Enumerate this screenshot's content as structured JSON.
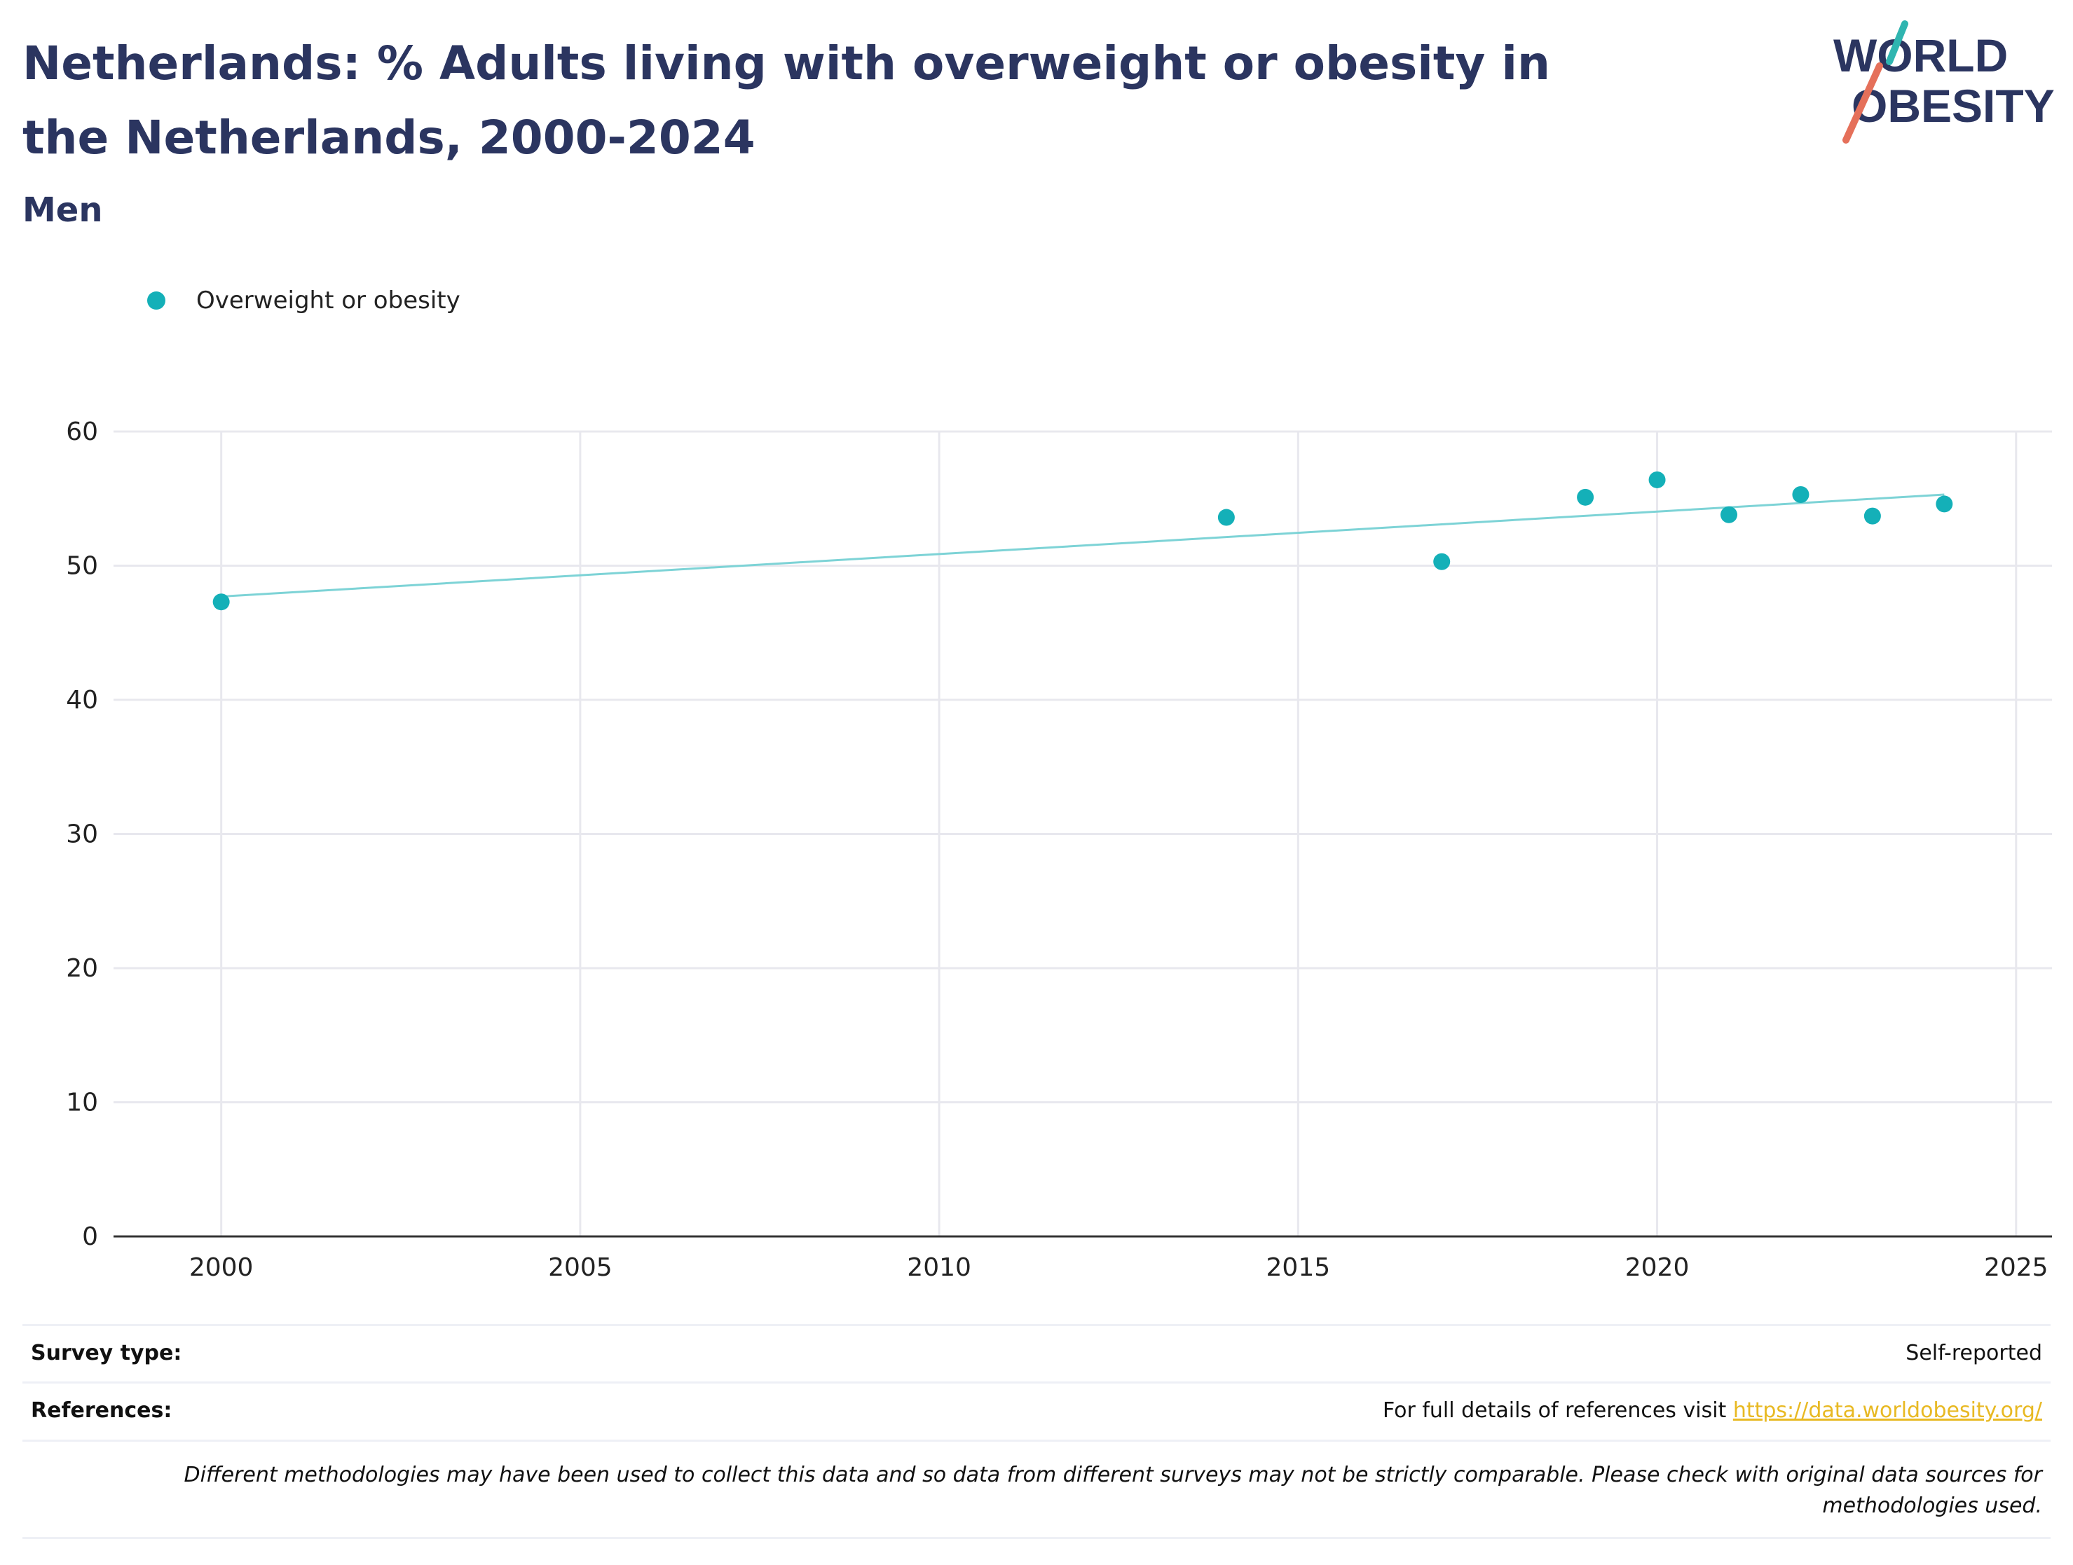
{
  "title": "Netherlands: % Adults living with overweight or obesity in the Netherlands, 2000-2024",
  "subtitle": "Men",
  "logo": {
    "line1": "WORLD",
    "line2": "OBESITY"
  },
  "colors": {
    "title": "#2b3560",
    "marker": "#14b0b8",
    "trend": "#7dd3d6",
    "grid": "#e8e8ee",
    "link": "#e8b923",
    "logo_teal": "#2fb5b0",
    "logo_coral": "#e5705a"
  },
  "chart_data": {
    "type": "scatter",
    "series": [
      {
        "name": "Overweight or obesity",
        "x": [
          2000,
          2014,
          2017,
          2019,
          2020,
          2021,
          2022,
          2023,
          2024
        ],
        "y": [
          47.3,
          53.6,
          50.3,
          55.1,
          56.4,
          53.8,
          55.3,
          53.7,
          54.6
        ]
      }
    ],
    "trendline": {
      "x": [
        2000,
        2024
      ],
      "y": [
        47.7,
        55.3
      ]
    },
    "xlim": [
      1998.5,
      2025.5
    ],
    "ylim": [
      0,
      60
    ],
    "xticks": [
      2000,
      2005,
      2010,
      2015,
      2020,
      2025
    ],
    "yticks": [
      0,
      10,
      20,
      30,
      40,
      50,
      60
    ],
    "grid": true,
    "legend_position": "top-left"
  },
  "footer": {
    "survey_label": "Survey type:",
    "survey_value": "Self-reported",
    "references_label": "References:",
    "references_text": "For full details of references visit",
    "references_link": "https://data.worldobesity.org/",
    "note": "Different methodologies may have been used to collect this data and so data from different surveys may not be strictly comparable. Please check with original data sources for methodologies used."
  }
}
